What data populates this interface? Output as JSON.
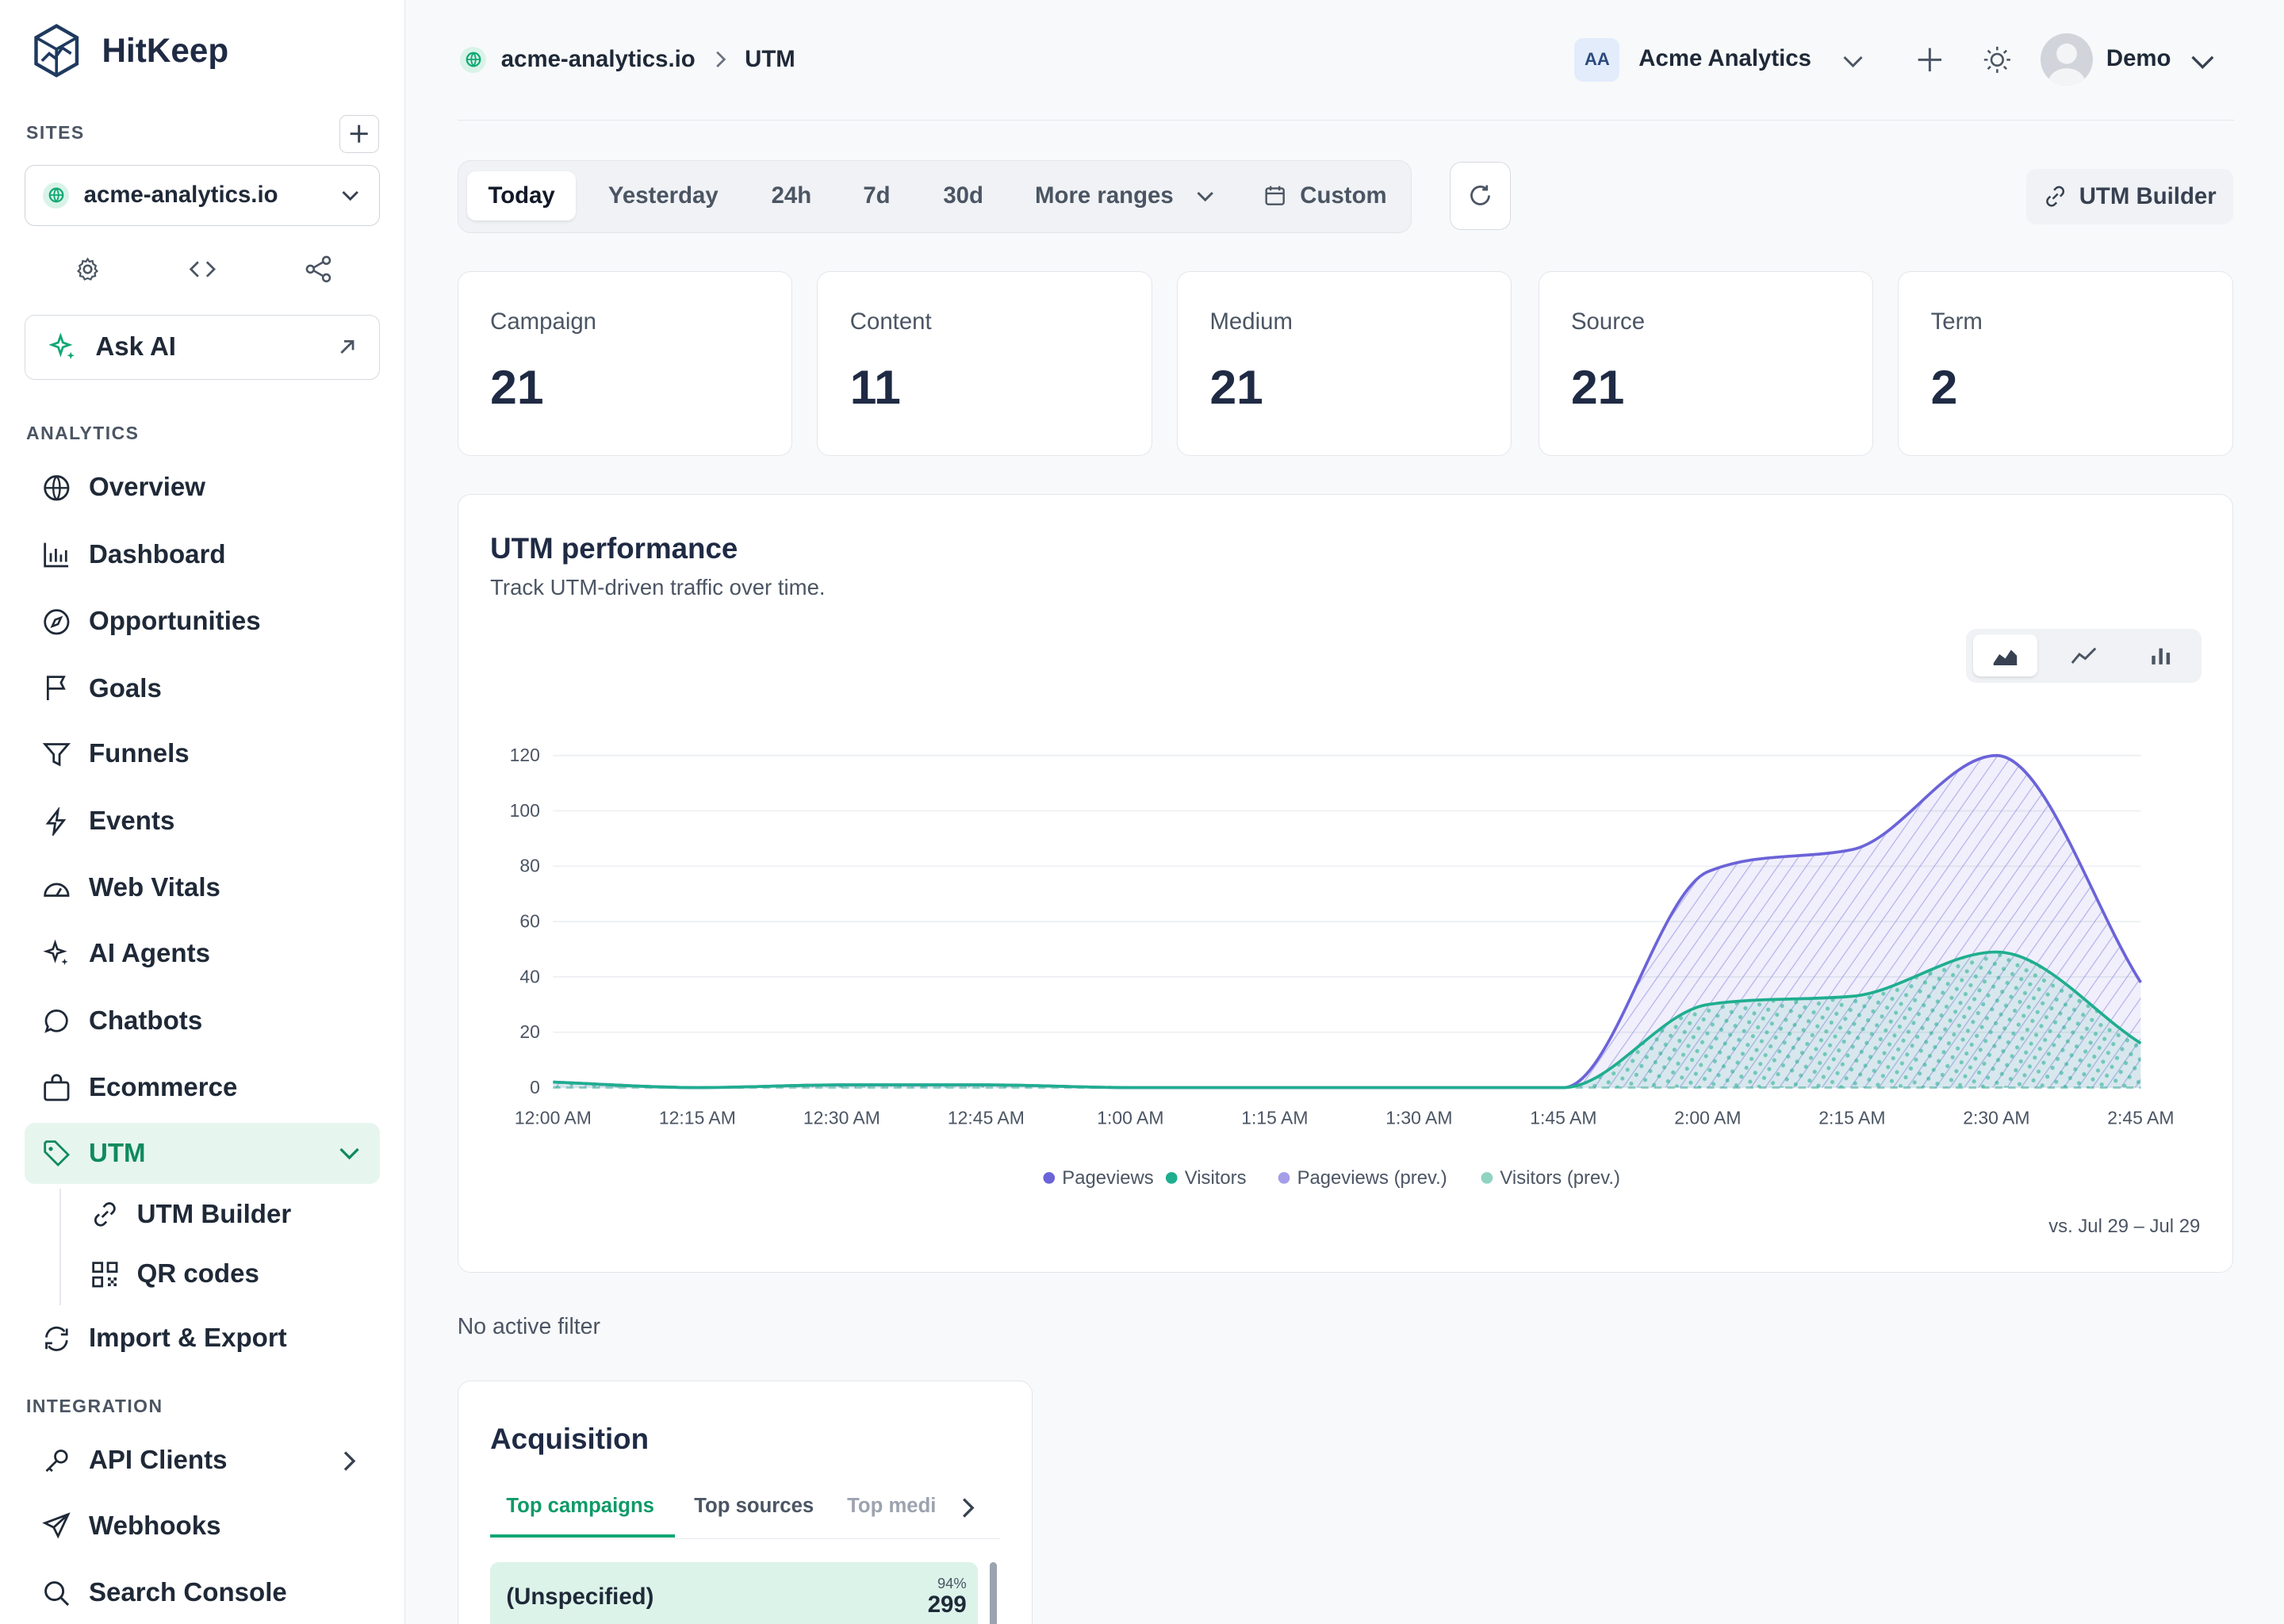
{
  "brand": {
    "name": "HitKeep"
  },
  "sidebar": {
    "sites_label": "SITES",
    "site_name": "acme-analytics.io",
    "ask_ai": "Ask AI",
    "analytics_label": "ANALYTICS",
    "items": [
      {
        "label": "Overview",
        "icon": "globe-icon"
      },
      {
        "label": "Dashboard",
        "icon": "bar-chart-icon"
      },
      {
        "label": "Opportunities",
        "icon": "compass-icon"
      },
      {
        "label": "Goals",
        "icon": "flag-icon"
      },
      {
        "label": "Funnels",
        "icon": "funnel-icon"
      },
      {
        "label": "Events",
        "icon": "bolt-icon"
      },
      {
        "label": "Web Vitals",
        "icon": "gauge-icon"
      },
      {
        "label": "AI Agents",
        "icon": "sparkle-icon"
      },
      {
        "label": "Chatbots",
        "icon": "chat-icon"
      },
      {
        "label": "Ecommerce",
        "icon": "bag-icon"
      },
      {
        "label": "UTM",
        "icon": "tag-icon"
      }
    ],
    "utm_sub": [
      {
        "label": "UTM Builder",
        "icon": "link-icon"
      },
      {
        "label": "QR codes",
        "icon": "qr-icon"
      }
    ],
    "import_export": "Import & Export",
    "integration_label": "INTEGRATION",
    "integration": [
      {
        "label": "API Clients",
        "icon": "key-icon"
      },
      {
        "label": "Webhooks",
        "icon": "send-icon"
      },
      {
        "label": "Search Console",
        "icon": "search-icon"
      }
    ]
  },
  "header": {
    "crumb_site": "acme-analytics.io",
    "crumb_page": "UTM",
    "org_initials": "AA",
    "org_name": "Acme Analytics",
    "user_name": "Demo"
  },
  "ranges": {
    "options": [
      "Today",
      "Yesterday",
      "24h",
      "7d",
      "30d",
      "More ranges",
      "Custom"
    ],
    "selected": "Today"
  },
  "utm_builder_label": "UTM Builder",
  "stats": [
    {
      "label": "Campaign",
      "value": "21"
    },
    {
      "label": "Content",
      "value": "11"
    },
    {
      "label": "Medium",
      "value": "21"
    },
    {
      "label": "Source",
      "value": "21"
    },
    {
      "label": "Term",
      "value": "2"
    }
  ],
  "chart_panel": {
    "title": "UTM performance",
    "subtitle": "Track UTM-driven traffic over time.",
    "comparison": "vs. Jul 29 – Jul 29"
  },
  "chart_data": {
    "type": "area",
    "x": [
      "12:00 AM",
      "12:15 AM",
      "12:30 AM",
      "12:45 AM",
      "1:00 AM",
      "1:15 AM",
      "1:30 AM",
      "1:45 AM",
      "2:00 AM",
      "2:15 AM",
      "2:30 AM",
      "2:45 AM"
    ],
    "yticks": [
      0,
      20,
      40,
      60,
      80,
      100,
      120
    ],
    "ylim": [
      0,
      120
    ],
    "legend_position": "bottom",
    "grid": true,
    "series": [
      {
        "name": "Pageviews",
        "color": "#6b63d8",
        "values": [
          2,
          0,
          1,
          1,
          0,
          0,
          0,
          0,
          78,
          86,
          120,
          38
        ]
      },
      {
        "name": "Visitors",
        "color": "#1fae8f",
        "values": [
          2,
          0,
          1,
          1,
          0,
          0,
          0,
          0,
          30,
          33,
          49,
          16
        ]
      },
      {
        "name": "Pageviews (prev.)",
        "color": "#a59ee8",
        "values": [
          0,
          0,
          0,
          0,
          0,
          0,
          0,
          0,
          0,
          0,
          0,
          0
        ]
      },
      {
        "name": "Visitors (prev.)",
        "color": "#8fd3c1",
        "values": [
          0,
          0,
          0,
          0,
          0,
          0,
          0,
          0,
          0,
          0,
          0,
          0
        ]
      }
    ]
  },
  "filter_status": "No active filter",
  "acquisition": {
    "title": "Acquisition",
    "tabs": [
      "Top campaigns",
      "Top sources",
      "Top medi"
    ],
    "rows": [
      {
        "name": "(Unspecified)",
        "pct": "94%",
        "count": "299"
      }
    ]
  }
}
